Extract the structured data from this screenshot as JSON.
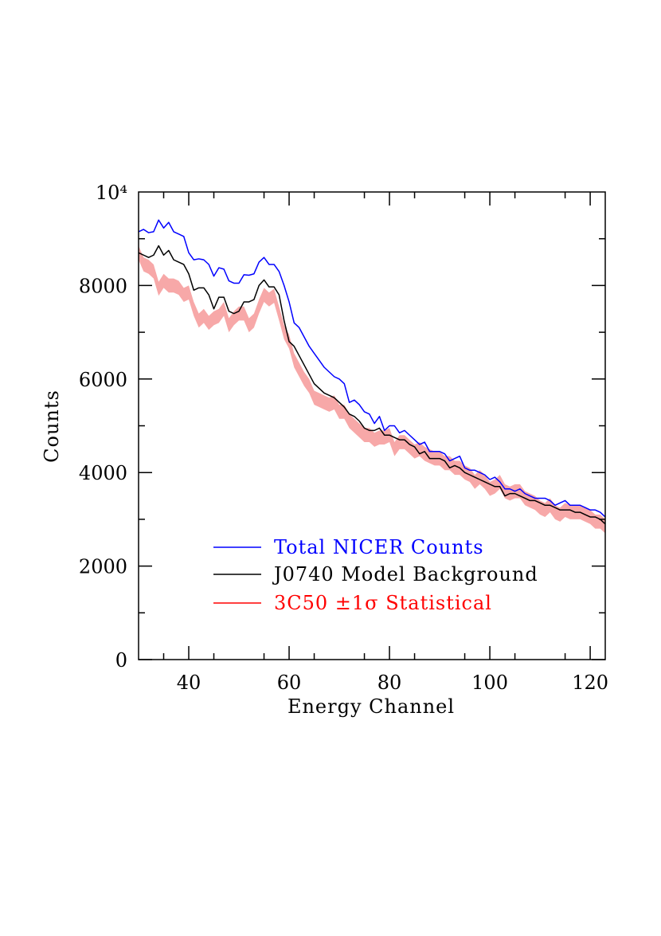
{
  "chart_data": {
    "type": "line",
    "xlabel": "Energy Channel",
    "ylabel": "Counts",
    "xlim": [
      30,
      123
    ],
    "ylim": [
      0,
      10000
    ],
    "grid": false,
    "legend_position": "lower-center",
    "x_ticks": [
      40,
      60,
      80,
      100,
      120
    ],
    "x_tick_labels": [
      "40",
      "60",
      "80",
      "100",
      "120"
    ],
    "y_ticks": [
      0,
      2000,
      4000,
      6000,
      8000
    ],
    "y_tick_labels": [
      "0",
      "2000",
      "4000",
      "6000",
      "8000"
    ],
    "y_top_label": "10⁴",
    "x": [
      30,
      31,
      32,
      33,
      34,
      35,
      36,
      37,
      38,
      39,
      40,
      41,
      42,
      43,
      44,
      45,
      46,
      47,
      48,
      49,
      50,
      51,
      52,
      53,
      54,
      55,
      56,
      57,
      58,
      59,
      60,
      61,
      62,
      63,
      64,
      65,
      66,
      67,
      68,
      69,
      70,
      71,
      72,
      73,
      74,
      75,
      76,
      77,
      78,
      79,
      80,
      81,
      82,
      83,
      84,
      85,
      86,
      87,
      88,
      89,
      90,
      91,
      92,
      93,
      94,
      95,
      96,
      97,
      98,
      99,
      100,
      101,
      102,
      103,
      104,
      105,
      106,
      107,
      108,
      109,
      110,
      111,
      112,
      113,
      114,
      115,
      116,
      117,
      118,
      119,
      120,
      121,
      122,
      123
    ],
    "series": [
      {
        "name": "Total NICER Counts",
        "color": "#0000ff",
        "values": [
          9150,
          9200,
          9130,
          9150,
          9400,
          9230,
          9350,
          9150,
          9100,
          9050,
          8700,
          8550,
          8570,
          8550,
          8450,
          8200,
          8380,
          8350,
          8100,
          8050,
          8050,
          8230,
          8220,
          8250,
          8500,
          8600,
          8450,
          8450,
          8300,
          8000,
          7650,
          7200,
          7100,
          6900,
          6700,
          6550,
          6400,
          6250,
          6150,
          6050,
          6000,
          5900,
          5500,
          5550,
          5450,
          5300,
          5250,
          5050,
          5200,
          4900,
          5000,
          5000,
          4850,
          4900,
          4800,
          4700,
          4600,
          4650,
          4450,
          4450,
          4450,
          4400,
          4250,
          4300,
          4350,
          4100,
          4050,
          4050,
          4000,
          3950,
          3850,
          3900,
          3800,
          3650,
          3650,
          3600,
          3650,
          3550,
          3500,
          3450,
          3450,
          3450,
          3400,
          3300,
          3350,
          3400,
          3300,
          3300,
          3300,
          3250,
          3200,
          3200,
          3150,
          3050
        ]
      },
      {
        "name": "J0740 Model Background",
        "color": "#000000",
        "values": [
          8700,
          8650,
          8600,
          8650,
          8850,
          8650,
          8750,
          8550,
          8500,
          8450,
          8250,
          7900,
          7950,
          7950,
          7800,
          7500,
          7750,
          7750,
          7450,
          7400,
          7450,
          7650,
          7650,
          7700,
          8000,
          8120,
          7970,
          7970,
          7800,
          7250,
          6800,
          6700,
          6500,
          6300,
          6100,
          5900,
          5800,
          5700,
          5650,
          5600,
          5500,
          5400,
          5250,
          5200,
          5100,
          4950,
          4900,
          4900,
          4950,
          4800,
          4800,
          4750,
          4700,
          4700,
          4600,
          4550,
          4400,
          4450,
          4300,
          4300,
          4300,
          4250,
          4100,
          4150,
          4100,
          4000,
          3950,
          3900,
          3850,
          3800,
          3750,
          3700,
          3700,
          3500,
          3550,
          3550,
          3500,
          3450,
          3400,
          3400,
          3350,
          3300,
          3300,
          3250,
          3200,
          3200,
          3200,
          3150,
          3150,
          3100,
          3050,
          3050,
          3000,
          2900
        ]
      },
      {
        "name": "3C50 ±1σ Statistical",
        "color": "#ff0000",
        "band_color": "#f7a8a8",
        "values": [
          8700,
          8450,
          8400,
          8300,
          7930,
          8100,
          8000,
          8000,
          7950,
          7800,
          7850,
          7500,
          7250,
          7350,
          7200,
          7300,
          7350,
          7500,
          7150,
          7300,
          7400,
          7400,
          7150,
          7250,
          7550,
          7800,
          7700,
          7780,
          7400,
          7000,
          6800,
          6400,
          6200,
          6000,
          5850,
          5600,
          5550,
          5500,
          5450,
          5500,
          5300,
          5300,
          5100,
          5000,
          4900,
          4800,
          4800,
          4700,
          4750,
          4750,
          4800,
          4500,
          4650,
          4650,
          4550,
          4450,
          4500,
          4400,
          4350,
          4300,
          4300,
          4200,
          4200,
          4100,
          4100,
          4000,
          3950,
          3800,
          3900,
          3800,
          3650,
          3700,
          3800,
          3600,
          3550,
          3600,
          3600,
          3450,
          3400,
          3350,
          3250,
          3200,
          3300,
          3150,
          3100,
          3200,
          3150,
          3150,
          3150,
          3100,
          3050,
          2950,
          2950,
          2850
        ],
        "sigma": 150
      }
    ]
  }
}
